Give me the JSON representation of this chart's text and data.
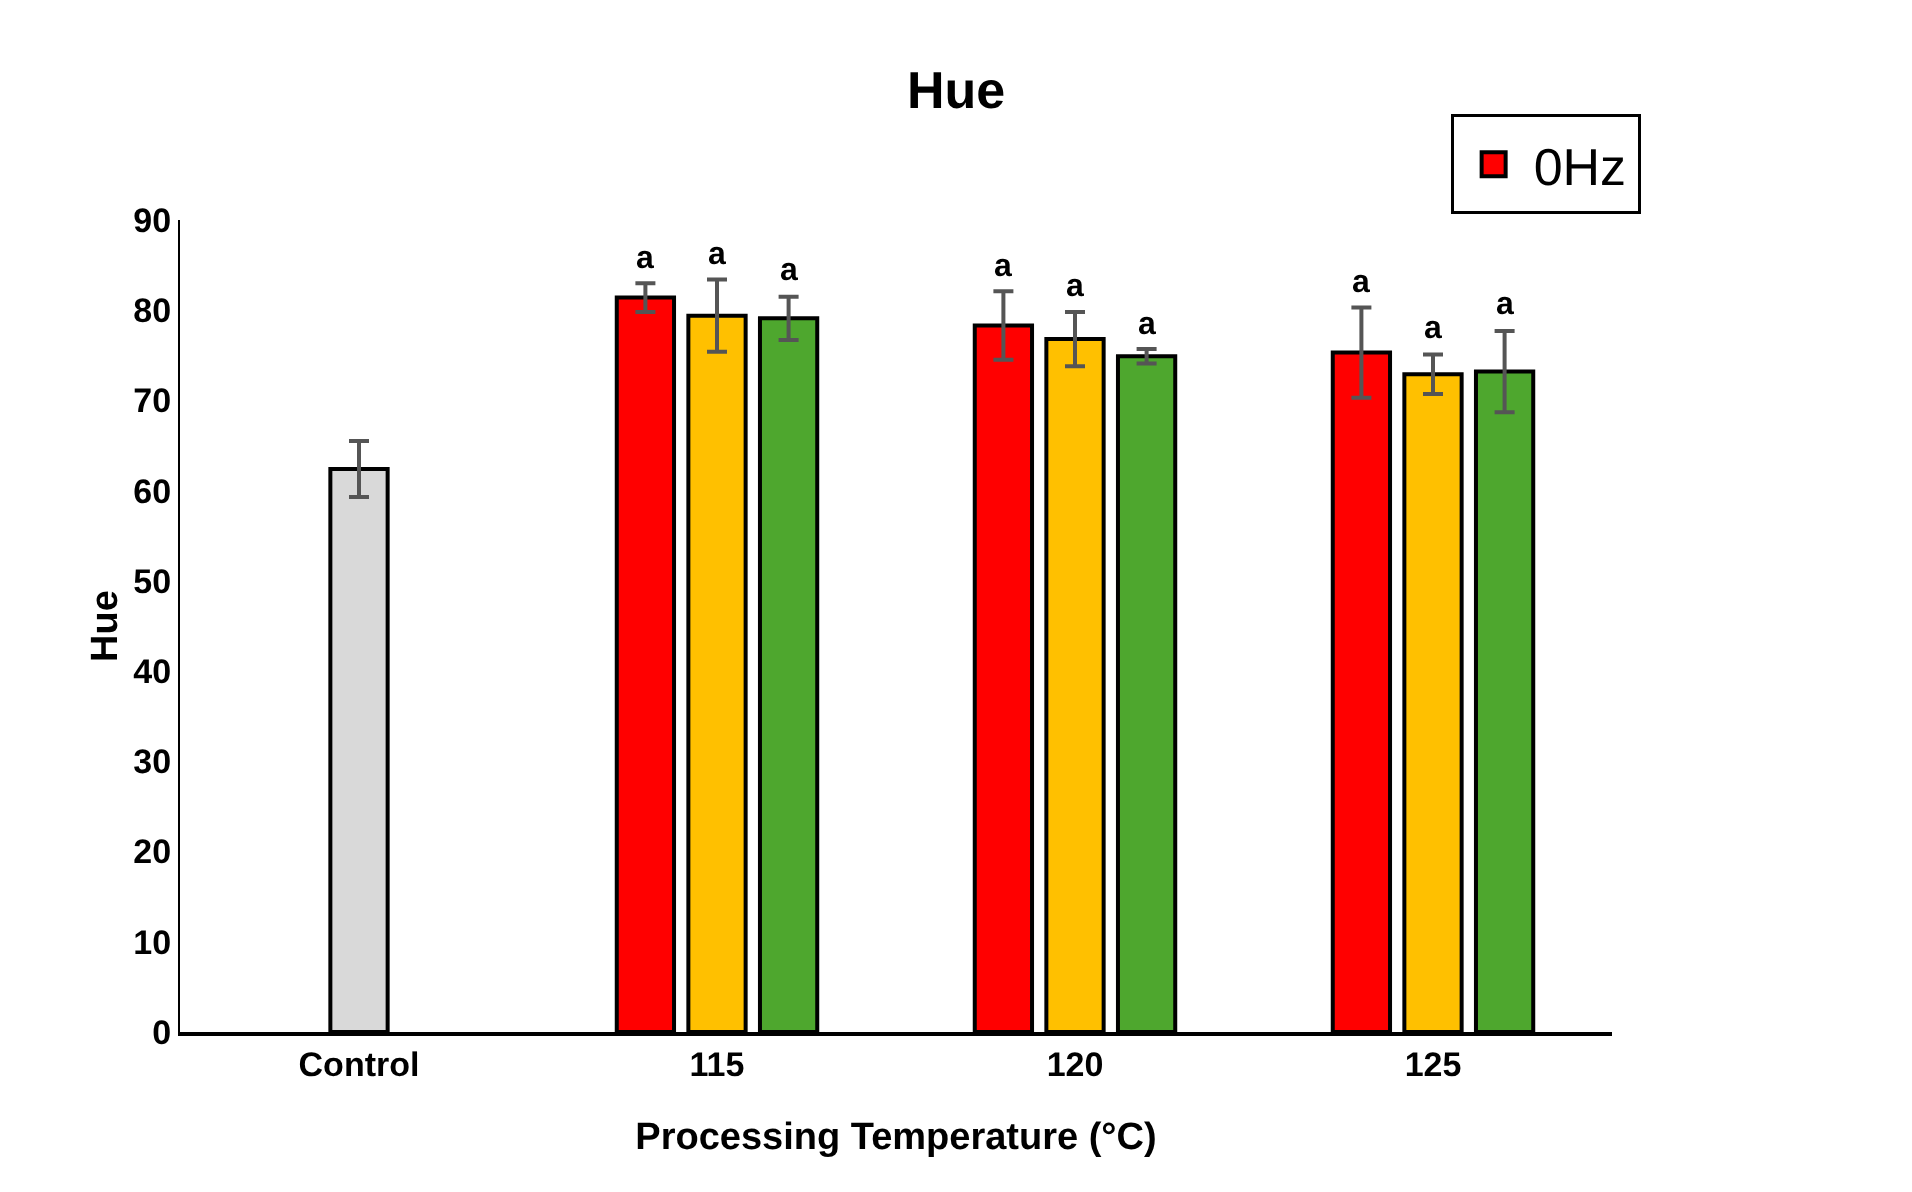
{
  "chart_data": {
    "type": "bar",
    "title": "Hue",
    "xlabel": "Processing Temperature (°C)",
    "ylabel": "Hue",
    "categories": [
      "Control",
      "115",
      "120",
      "125"
    ],
    "series": [
      {
        "color": "#d9d9d9",
        "values": [
          62.4,
          null,
          null,
          null
        ],
        "errors": [
          3.1,
          null,
          null,
          null
        ],
        "value_labels": [
          null,
          null,
          null,
          null
        ]
      },
      {
        "name": "0Hz",
        "color": "#ff0000",
        "values": [
          null,
          81.4,
          78.3,
          75.3
        ],
        "errors": [
          null,
          1.6,
          3.8,
          5.0
        ],
        "value_labels": [
          null,
          "a",
          "a",
          "a"
        ]
      },
      {
        "color": "#ffc000",
        "values": [
          null,
          79.4,
          76.8,
          72.9
        ],
        "errors": [
          null,
          4.0,
          3.0,
          2.2
        ],
        "value_labels": [
          null,
          "a",
          "a",
          "a"
        ]
      },
      {
        "color": "#4ea72e",
        "values": [
          null,
          79.1,
          74.9,
          73.2
        ],
        "errors": [
          null,
          2.4,
          0.8,
          4.5
        ],
        "value_labels": [
          null,
          "a",
          "a",
          "a"
        ]
      }
    ],
    "ylim": [
      0,
      90
    ],
    "yticks": [
      0,
      10,
      20,
      30,
      40,
      50,
      60,
      70,
      80,
      90
    ],
    "grid": false,
    "legend": "top right"
  }
}
